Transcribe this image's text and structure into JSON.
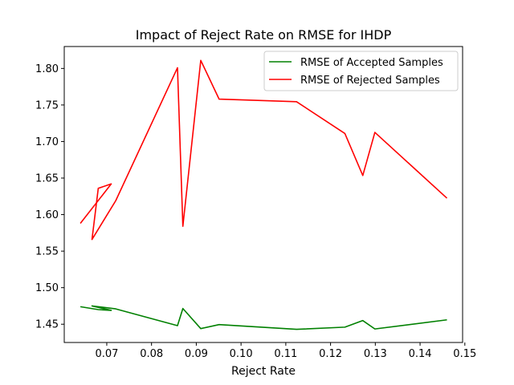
{
  "chart_data": {
    "type": "line",
    "title": "Impact of Reject Rate on RMSE for IHDP",
    "xlabel": "Reject Rate",
    "ylabel": "",
    "xlim": [
      0.0605,
      0.1495
    ],
    "ylim": [
      1.425,
      1.83
    ],
    "xticks": [
      0.07,
      0.08,
      0.09,
      0.1,
      0.11,
      0.12,
      0.13,
      0.14,
      0.15
    ],
    "xtick_labels": [
      "0.07",
      "0.08",
      "0.09",
      "0.10",
      "0.11",
      "0.12",
      "0.13",
      "0.14",
      "0.15"
    ],
    "yticks": [
      1.45,
      1.5,
      1.55,
      1.6,
      1.65,
      1.7,
      1.75,
      1.8
    ],
    "ytick_labels": [
      "1.45",
      "1.50",
      "1.55",
      "1.60",
      "1.65",
      "1.70",
      "1.75",
      "1.80"
    ],
    "grid": false,
    "legend": "top-right",
    "series": [
      {
        "name": "RMSE of Accepted Samples",
        "color": "#008000",
        "x": [
          0.0641,
          0.0681,
          0.071,
          0.0667,
          0.072,
          0.0858,
          0.087,
          0.091,
          0.0951,
          0.1124,
          0.1232,
          0.1272,
          0.1299,
          0.146
        ],
        "y": [
          1.474,
          1.47,
          1.469,
          1.475,
          1.471,
          1.448,
          1.4715,
          1.444,
          1.4495,
          1.443,
          1.446,
          1.455,
          1.4435,
          1.456
        ]
      },
      {
        "name": "RMSE of Rejected Samples",
        "color": "#ff0000",
        "x": [
          0.0641,
          0.071,
          0.0681,
          0.0667,
          0.072,
          0.0858,
          0.087,
          0.091,
          0.0951,
          0.1124,
          0.1232,
          0.1272,
          0.1299,
          0.146
        ],
        "y": [
          1.588,
          1.642,
          1.636,
          1.566,
          1.619,
          1.801,
          1.584,
          1.811,
          1.758,
          1.7545,
          1.711,
          1.6535,
          1.7125,
          1.6225
        ]
      }
    ]
  }
}
